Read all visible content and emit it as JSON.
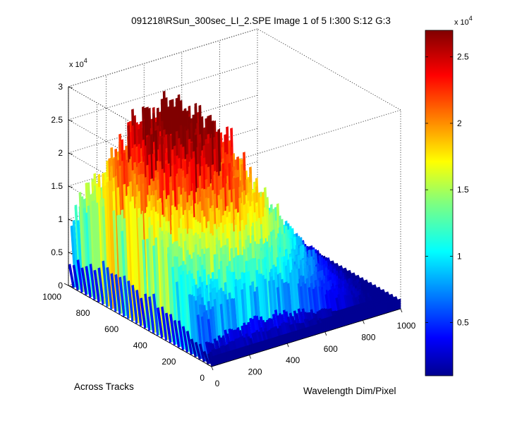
{
  "chart_data": {
    "type": "surface",
    "title": "091218\\RSun_300sec_LI_2.SPE  Image 1 of 5  I:300  S:12  G:3",
    "xlabel": "Wavelength Dim/Pixel",
    "ylabel": "Across Tracks",
    "zlabel": "",
    "xlim": [
      0,
      1000
    ],
    "ylim": [
      0,
      1000
    ],
    "zlim": [
      0,
      30000
    ],
    "x_ticks": [
      "0",
      "200",
      "400",
      "600",
      "800",
      "1000"
    ],
    "y_ticks": [
      "0",
      "200",
      "400",
      "600",
      "800",
      "1000"
    ],
    "z_ticks": [
      "0",
      "0.5",
      "1",
      "1.5",
      "2",
      "2.5",
      "3"
    ],
    "z_multiplier": "x 10",
    "z_exponent": "4",
    "grid": true,
    "colormap": "jet",
    "colorbar": {
      "clim": [
        1000,
        27000
      ],
      "ticks": [
        "0.5",
        "1",
        "1.5",
        "2",
        "2.5"
      ],
      "tick_values": [
        5000,
        10000,
        15000,
        20000,
        25000
      ],
      "multiplier": "x 10",
      "exponent": "4"
    },
    "surface_peak": {
      "x": 300,
      "y": 620,
      "z": 28000
    }
  }
}
